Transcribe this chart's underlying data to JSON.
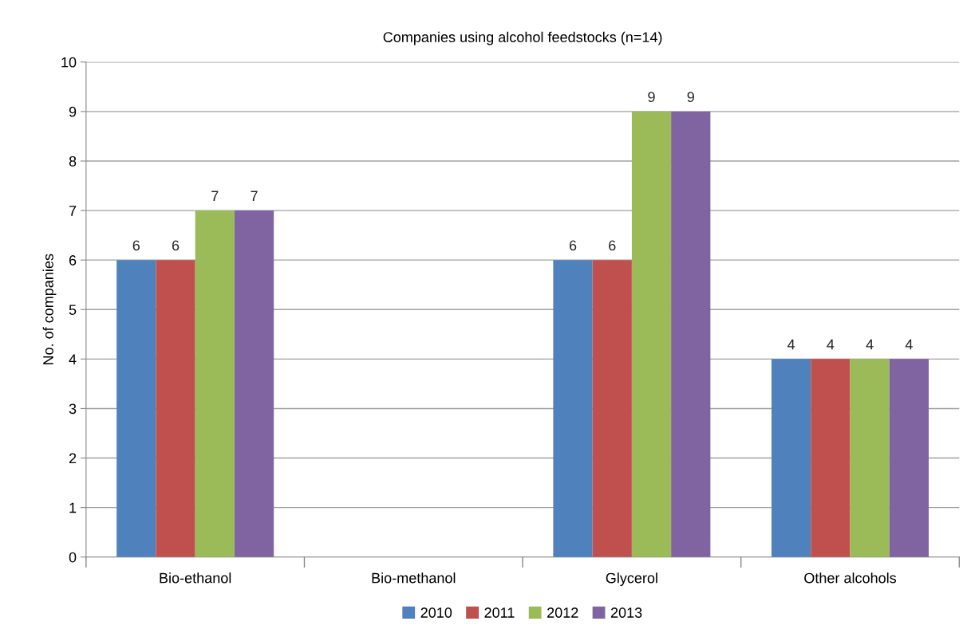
{
  "chart_data": {
    "type": "bar",
    "title": "Companies using alcohol feedstocks (n=14)",
    "ylabel": "No. of companies",
    "categories": [
      "Bio-ethanol",
      "Bio-methanol",
      "Glycerol",
      "Other alcohols"
    ],
    "series": [
      {
        "name": "2010",
        "color": "#4f81bd",
        "values": [
          6,
          null,
          6,
          4
        ]
      },
      {
        "name": "2011",
        "color": "#c0504d",
        "values": [
          6,
          null,
          6,
          4
        ]
      },
      {
        "name": "2012",
        "color": "#9bbb59",
        "values": [
          7,
          null,
          9,
          4
        ]
      },
      {
        "name": "2013",
        "color": "#8064a2",
        "values": [
          7,
          null,
          9,
          4
        ]
      }
    ],
    "ylim": [
      0,
      10
    ],
    "yticks": [
      0,
      1,
      2,
      3,
      4,
      5,
      6,
      7,
      8,
      9,
      10
    ],
    "grid": "y",
    "legend": "bottom",
    "data_labels": true
  }
}
